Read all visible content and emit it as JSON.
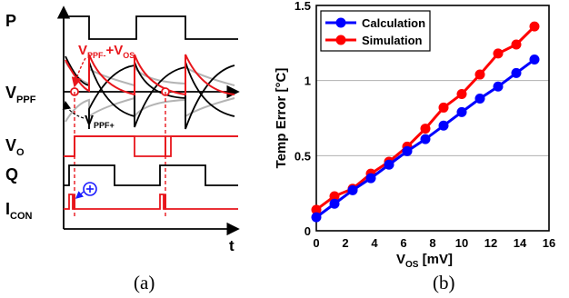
{
  "timing": {
    "labels": {
      "p": "P",
      "vppf": "V",
      "vppf_sub": "PPF",
      "vo": "V",
      "vo_sub": "O",
      "q": "Q",
      "icon": "I",
      "icon_sub": "CON",
      "t": "t",
      "vminus_v": "V",
      "vminus_sub": "PPF-",
      "vminus_plus": "+V",
      "vminus_sub2": "OS",
      "vplus_v": "V",
      "vplus_sub": "PPF+"
    },
    "caption": "(a)",
    "colors": {
      "red": "#e8161c",
      "blue": "#1a1aff",
      "gray": "#b4b4b4"
    }
  },
  "chart_data": {
    "type": "line",
    "caption": "(b)",
    "xlabel_main": "V",
    "xlabel_sub": "OS",
    "xlabel_unit": " [mV]",
    "ylabel": "Temp Error [°C]",
    "xlim": [
      0,
      16
    ],
    "ylim": [
      0,
      1.5
    ],
    "xticks": [
      "0",
      "2",
      "4",
      "6",
      "8",
      "10",
      "12",
      "14",
      "16"
    ],
    "yticks": [
      "0",
      "0.5",
      "1",
      "1.5"
    ],
    "grid": "horizontal",
    "legend_position": "top-left",
    "x": [
      0,
      1.25,
      2.5,
      3.75,
      5,
      6.25,
      7.5,
      8.75,
      10,
      11.25,
      12.5,
      13.75,
      15
    ],
    "series": [
      {
        "name": "Calculation",
        "color": "#0000ff",
        "values": [
          0.09,
          0.18,
          0.27,
          0.35,
          0.44,
          0.53,
          0.61,
          0.7,
          0.79,
          0.88,
          0.96,
          1.05,
          1.14
        ]
      },
      {
        "name": "Simulation",
        "color": "#ff0000",
        "values": [
          0.14,
          0.23,
          0.28,
          0.38,
          0.46,
          0.56,
          0.68,
          0.82,
          0.91,
          1.04,
          1.18,
          1.24,
          1.36
        ]
      }
    ]
  }
}
